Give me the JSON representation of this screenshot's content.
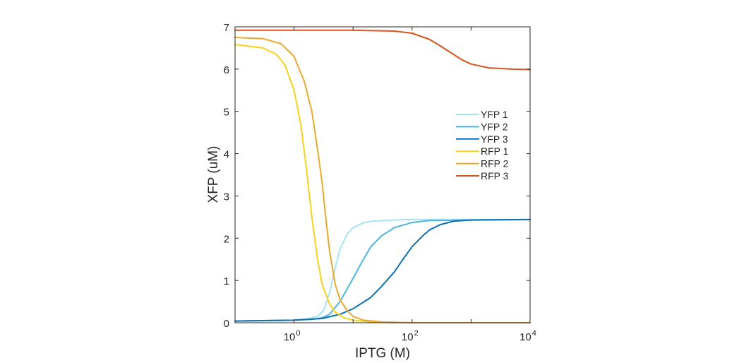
{
  "chart_data": {
    "type": "line",
    "xlabel": "IPTG (M)",
    "ylabel": "XFP (uM)",
    "x_scale": "log",
    "xlim": [
      0.1,
      10000
    ],
    "ylim": [
      0,
      7
    ],
    "x_ticks": [
      {
        "value": 1,
        "base": "10",
        "exp": "0"
      },
      {
        "value": 100,
        "base": "10",
        "exp": "2"
      },
      {
        "value": 10000,
        "base": "10",
        "exp": "4"
      }
    ],
    "y_ticks": [
      0,
      1,
      2,
      3,
      4,
      5,
      6,
      7
    ],
    "y_tick_labels": [
      "0",
      "1",
      "2",
      "3",
      "4",
      "5",
      "6",
      "7"
    ],
    "grid": false,
    "box": true,
    "legend_position": "right-middle",
    "series": [
      {
        "name": "YFP 1",
        "color": "#a6e3f5",
        "points": [
          [
            0.1,
            0.04
          ],
          [
            1,
            0.06
          ],
          [
            1.8,
            0.1
          ],
          [
            2.5,
            0.15
          ],
          [
            3.2,
            0.3
          ],
          [
            4,
            0.7
          ],
          [
            5,
            1.3
          ],
          [
            6,
            1.75
          ],
          [
            8,
            2.1
          ],
          [
            10,
            2.25
          ],
          [
            15,
            2.36
          ],
          [
            20,
            2.4
          ],
          [
            50,
            2.43
          ],
          [
            100,
            2.44
          ],
          [
            10000,
            2.44
          ]
        ]
      },
      {
        "name": "YFP 2",
        "color": "#4db5e0",
        "points": [
          [
            0.1,
            0.04
          ],
          [
            1,
            0.06
          ],
          [
            2,
            0.08
          ],
          [
            3,
            0.12
          ],
          [
            4,
            0.2
          ],
          [
            6,
            0.5
          ],
          [
            10,
            1.05
          ],
          [
            15,
            1.5
          ],
          [
            20,
            1.8
          ],
          [
            30,
            2.05
          ],
          [
            50,
            2.25
          ],
          [
            100,
            2.37
          ],
          [
            200,
            2.42
          ],
          [
            10000,
            2.44
          ]
        ]
      },
      {
        "name": "YFP 3",
        "color": "#0f6fb4",
        "points": [
          [
            0.1,
            0.04
          ],
          [
            1,
            0.06
          ],
          [
            3,
            0.1
          ],
          [
            6,
            0.2
          ],
          [
            10,
            0.33
          ],
          [
            20,
            0.6
          ],
          [
            30,
            0.85
          ],
          [
            50,
            1.2
          ],
          [
            70,
            1.5
          ],
          [
            100,
            1.8
          ],
          [
            150,
            2.05
          ],
          [
            200,
            2.2
          ],
          [
            300,
            2.32
          ],
          [
            500,
            2.4
          ],
          [
            1000,
            2.43
          ],
          [
            10000,
            2.44
          ]
        ]
      },
      {
        "name": "RFP 1",
        "color": "#f6d21c",
        "points": [
          [
            0.1,
            6.58
          ],
          [
            0.3,
            6.5
          ],
          [
            0.5,
            6.35
          ],
          [
            0.7,
            6.1
          ],
          [
            1,
            5.5
          ],
          [
            1.3,
            4.7
          ],
          [
            1.6,
            3.7
          ],
          [
            2,
            2.5
          ],
          [
            2.5,
            1.5
          ],
          [
            3,
            0.9
          ],
          [
            4,
            0.45
          ],
          [
            5,
            0.25
          ],
          [
            7,
            0.12
          ],
          [
            10,
            0.06
          ],
          [
            20,
            0.02
          ],
          [
            50,
            0
          ],
          [
            10000,
            0
          ]
        ]
      },
      {
        "name": "RFP 2",
        "color": "#eaa92c",
        "points": [
          [
            0.1,
            6.75
          ],
          [
            0.3,
            6.72
          ],
          [
            0.6,
            6.6
          ],
          [
            1,
            6.3
          ],
          [
            1.5,
            5.7
          ],
          [
            2,
            5.0
          ],
          [
            2.5,
            4.1
          ],
          [
            3,
            3.3
          ],
          [
            3.5,
            2.4
          ],
          [
            4,
            1.7
          ],
          [
            5,
            0.9
          ],
          [
            6,
            0.55
          ],
          [
            8,
            0.28
          ],
          [
            10,
            0.15
          ],
          [
            15,
            0.06
          ],
          [
            30,
            0.02
          ],
          [
            100,
            0
          ],
          [
            10000,
            0
          ]
        ]
      },
      {
        "name": "RFP 3",
        "color": "#d9541c",
        "points": [
          [
            0.1,
            6.92
          ],
          [
            10,
            6.92
          ],
          [
            50,
            6.9
          ],
          [
            100,
            6.85
          ],
          [
            200,
            6.7
          ],
          [
            300,
            6.55
          ],
          [
            500,
            6.35
          ],
          [
            700,
            6.22
          ],
          [
            1000,
            6.12
          ],
          [
            2000,
            6.03
          ],
          [
            5000,
            6.0
          ],
          [
            10000,
            5.99
          ]
        ]
      }
    ]
  }
}
